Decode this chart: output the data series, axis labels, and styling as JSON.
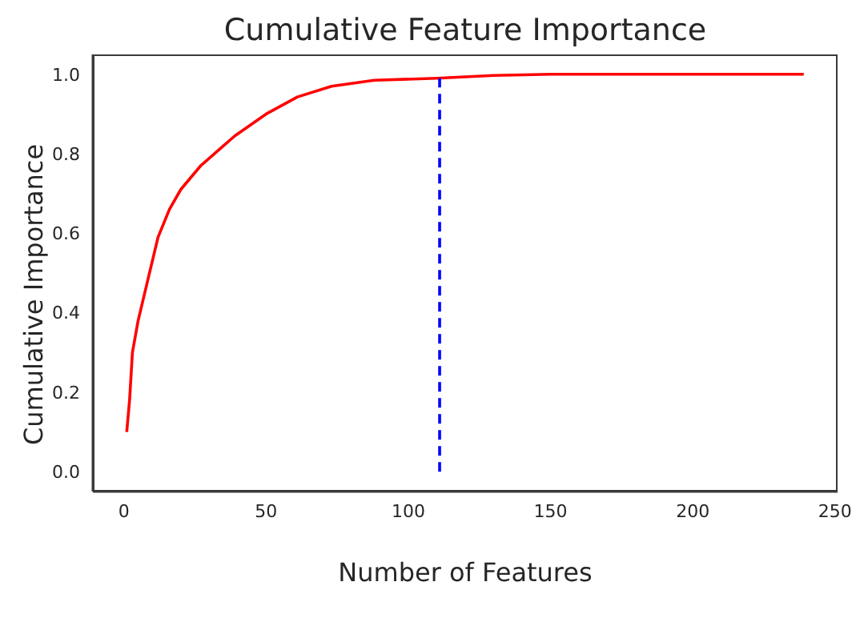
{
  "chart_data": {
    "type": "line",
    "title": "Cumulative Feature Importance",
    "xlabel": "Number of Features",
    "ylabel": "Cumulative Importance",
    "xlim": [
      -10.9,
      250.9
    ],
    "xticks": [
      0,
      50,
      100,
      150,
      200,
      250
    ],
    "ylim": [
      -0.05,
      1.05
    ],
    "yticks": [
      {
        "value": 0,
        "label": "0.0"
      },
      0.2,
      0.4,
      0.6,
      0.8,
      {
        "value": 1,
        "label": "1.0"
      }
    ],
    "marker": "none",
    "series": [
      {
        "color": "#ff0000",
        "line_style": "solid",
        "x": [
          1,
          2,
          3,
          5,
          8,
          12,
          16,
          20,
          27,
          35,
          39,
          50,
          61,
          73,
          88,
          110,
          130,
          150,
          200,
          239
        ],
        "values": [
          0.1,
          0.18,
          0.3,
          0.38,
          0.47,
          0.59,
          0.66,
          0.71,
          0.77,
          0.82,
          0.845,
          0.9,
          0.943,
          0.97,
          0.985,
          0.99,
          0.997,
          1.0,
          1.0,
          1.0
        ]
      },
      {
        "color": "#0000ff",
        "line_style": "dashed",
        "x": [
          111,
          111
        ],
        "values": [
          0,
          0.99
        ]
      }
    ]
  }
}
